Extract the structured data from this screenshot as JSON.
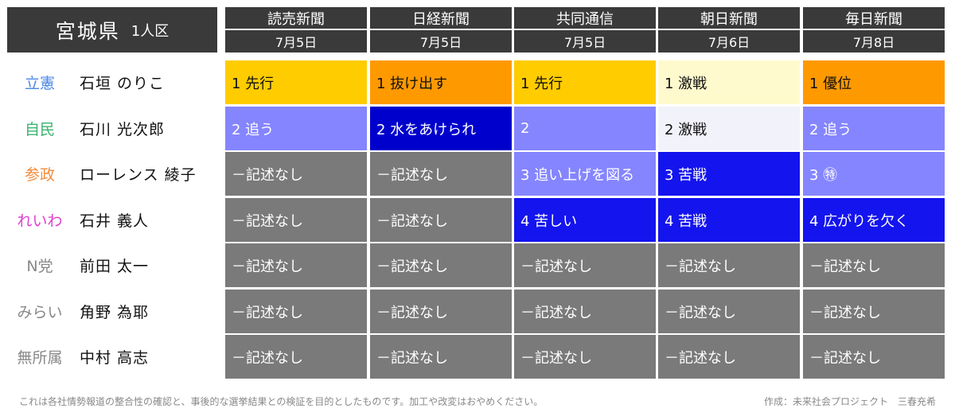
{
  "header": {
    "title": "宮城県",
    "subtitle": "1人区"
  },
  "columns": [
    {
      "paper": "読売新聞",
      "date": "7月5日"
    },
    {
      "paper": "日経新聞",
      "date": "7月5日"
    },
    {
      "paper": "共同通信",
      "date": "7月5日"
    },
    {
      "paper": "朝日新聞",
      "date": "7月6日"
    },
    {
      "paper": "毎日新聞",
      "date": "7月8日"
    }
  ],
  "rows": [
    {
      "party": "立憲",
      "party_color": "#4a86e8",
      "candidate": "石垣 のりこ",
      "cells": [
        {
          "text": "1 先行",
          "color": "yellow"
        },
        {
          "text": "1 抜け出す",
          "color": "orange"
        },
        {
          "text": "1 先行",
          "color": "yellow"
        },
        {
          "text": "1 激戦",
          "color": "cream"
        },
        {
          "text": "1 優位",
          "color": "orange"
        }
      ]
    },
    {
      "party": "自民",
      "party_color": "#3cb371",
      "candidate": "石川 光次郎",
      "cells": [
        {
          "text": "2 追う",
          "color": "lavender"
        },
        {
          "text": "2 水をあけられ",
          "color": "navy"
        },
        {
          "text": "2",
          "color": "lavender"
        },
        {
          "text": "2 激戦",
          "color": "pale"
        },
        {
          "text": "2 追う",
          "color": "lavender"
        }
      ]
    },
    {
      "party": "参政",
      "party_color": "#f08c3c",
      "candidate": "ローレンス 綾子",
      "cells": [
        {
          "text": "－記述なし",
          "color": "grey"
        },
        {
          "text": "－記述なし",
          "color": "grey"
        },
        {
          "text": "3 追い上げを図る",
          "color": "lavender"
        },
        {
          "text": "3 苦戦",
          "color": "blue"
        },
        {
          "text": "3 ㊕",
          "color": "lavender"
        }
      ]
    },
    {
      "party": "れいわ",
      "party_color": "#e040d0",
      "candidate": "石井 義人",
      "cells": [
        {
          "text": "－記述なし",
          "color": "grey"
        },
        {
          "text": "－記述なし",
          "color": "grey"
        },
        {
          "text": "4 苦しい",
          "color": "blue"
        },
        {
          "text": "4 苦戦",
          "color": "blue"
        },
        {
          "text": "4 広がりを欠く",
          "color": "blue"
        }
      ]
    },
    {
      "party": "N党",
      "party_color": "#888888",
      "candidate": "前田 太一",
      "cells": [
        {
          "text": "－記述なし",
          "color": "grey"
        },
        {
          "text": "－記述なし",
          "color": "grey"
        },
        {
          "text": "－記述なし",
          "color": "grey"
        },
        {
          "text": "－記述なし",
          "color": "grey"
        },
        {
          "text": "－記述なし",
          "color": "grey"
        }
      ]
    },
    {
      "party": "みらい",
      "party_color": "#888888",
      "candidate": "角野 為耶",
      "cells": [
        {
          "text": "－記述なし",
          "color": "grey"
        },
        {
          "text": "－記述なし",
          "color": "grey"
        },
        {
          "text": "－記述なし",
          "color": "grey"
        },
        {
          "text": "－記述なし",
          "color": "grey"
        },
        {
          "text": "－記述なし",
          "color": "grey"
        }
      ]
    },
    {
      "party": "無所属",
      "party_color": "#888888",
      "candidate": "中村 高志",
      "cells": [
        {
          "text": "－記述なし",
          "color": "grey"
        },
        {
          "text": "－記述なし",
          "color": "grey"
        },
        {
          "text": "－記述なし",
          "color": "grey"
        },
        {
          "text": "－記述なし",
          "color": "grey"
        },
        {
          "text": "－記述なし",
          "color": "grey"
        }
      ]
    }
  ],
  "footer": {
    "note": "これは各社情勢報道の整合性の確認と、事後的な選挙結果との検証を目的としたものです。加工や改変はおやめください。",
    "credit": "作成：未来社会プロジェクト　三春充希"
  }
}
